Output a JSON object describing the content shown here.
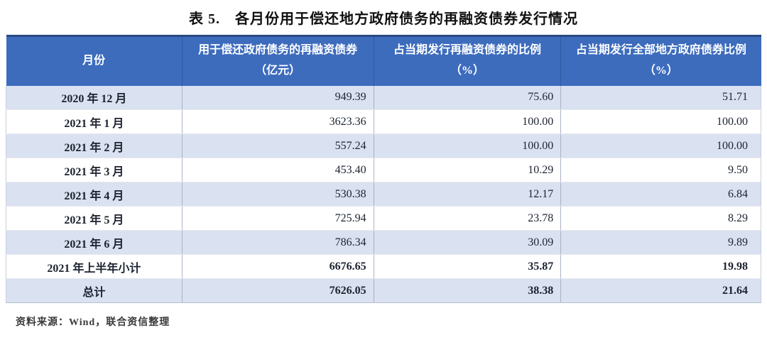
{
  "title": "表 5.　各月份用于偿还地方政府债务的再融资债券发行情况",
  "table": {
    "columns": [
      {
        "label": "月份"
      },
      {
        "label": "用于偿还政府债务的再融资债券（亿元）"
      },
      {
        "label": "占当期发行再融资债券的比例（%）"
      },
      {
        "label": "占当期发行全部地方政府债券比例（%）"
      }
    ],
    "rows": [
      {
        "month": "2020 年 12 月",
        "amount": "949.39",
        "pct_refinancing": "75.60",
        "pct_all": "51.71",
        "emphasis": false
      },
      {
        "month": "2021 年 1 月",
        "amount": "3623.36",
        "pct_refinancing": "100.00",
        "pct_all": "100.00",
        "emphasis": false
      },
      {
        "month": "2021 年 2 月",
        "amount": "557.24",
        "pct_refinancing": "100.00",
        "pct_all": "100.00",
        "emphasis": false
      },
      {
        "month": "2021 年 3 月",
        "amount": "453.40",
        "pct_refinancing": "10.29",
        "pct_all": "9.50",
        "emphasis": false
      },
      {
        "month": "2021 年 4 月",
        "amount": "530.38",
        "pct_refinancing": "12.17",
        "pct_all": "6.84",
        "emphasis": false
      },
      {
        "month": "2021 年 5 月",
        "amount": "725.94",
        "pct_refinancing": "23.78",
        "pct_all": "8.29",
        "emphasis": false
      },
      {
        "month": "2021 年 6 月",
        "amount": "786.34",
        "pct_refinancing": "30.09",
        "pct_all": "9.89",
        "emphasis": false
      },
      {
        "month": "2021 年上半年小计",
        "amount": "6676.65",
        "pct_refinancing": "35.87",
        "pct_all": "19.98",
        "emphasis": true
      },
      {
        "month": "总计",
        "amount": "7626.05",
        "pct_refinancing": "38.38",
        "pct_all": "21.64",
        "emphasis": true
      }
    ]
  },
  "footer": {
    "source": "资料来源：Wind，联合资信整理"
  },
  "colors": {
    "header_bg": "#3d6cbd",
    "header_border": "#2a4a82",
    "header_divider": "#33589e",
    "row_alt_bg": "#dae1f0",
    "body_divider": "#a9b3c4",
    "text_color": "#1c2330"
  }
}
